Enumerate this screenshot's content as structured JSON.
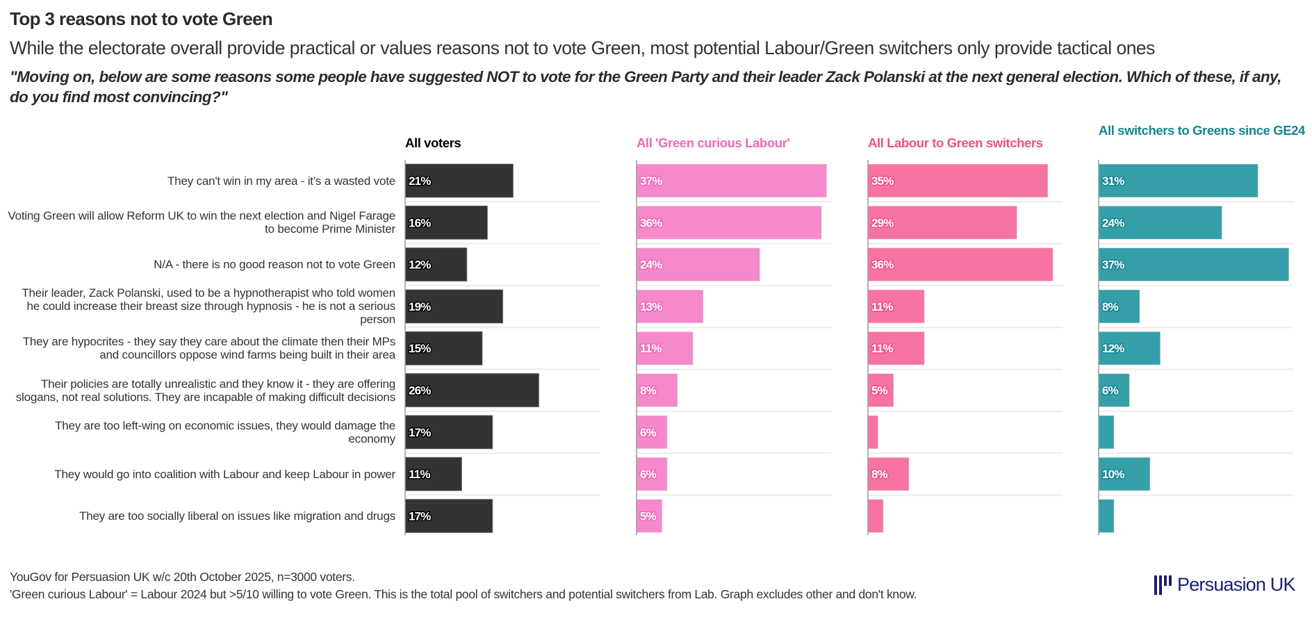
{
  "header": {
    "title": "Top 3 reasons not to vote Green",
    "subtitle": "While the electorate overall provide practical or values reasons not to vote Green, most potential Labour/Green switchers only provide tactical ones",
    "question": "\"Moving on, below are some reasons some people have suggested NOT to vote for the Green Party and their leader Zack Polanski at the next general election. Which of these, if any, do you find most convincing?\""
  },
  "footer": {
    "source": "YouGov for Persuasion UK w/c 20th October 2025, n=3000 voters.",
    "note": "'Green curious Labour' = Labour 2024 but >5/10 willing to vote Green. This is the total pool of switchers and potential switchers from Lab. Graph excludes other and don't know."
  },
  "logo": {
    "text": "Persuasion UK",
    "icon": "persuasion-bars-icon",
    "color": "#1a1f71"
  },
  "chart_data": {
    "type": "bar",
    "orientation": "horizontal",
    "title": "Top 3 reasons not to vote Green",
    "unit": "%",
    "xlim": [
      0,
      40
    ],
    "grid": false,
    "categories": [
      "They can't win in my area - it's a wasted vote",
      "Voting Green will allow Reform UK to win the next election and Nigel Farage to become Prime Minister",
      "N/A - there is no good reason not to vote Green",
      "Their leader, Zack Polanski, used to be a hypnotherapist who told women he could increase their breast size through hypnosis - he is not a serious person",
      "They are hypocrites - they say they care about the climate then their MPs and councillors oppose wind farms being built in their area",
      "Their policies are totally unrealistic and they know it - they are offering slogans, not real solutions. They are incapable of making difficult decisions",
      "They are too left-wing on economic issues, they would damage the economy",
      "They would go into coalition with Labour and keep Labour in power",
      "They are too socially liberal on issues like migration and drugs"
    ],
    "series": [
      {
        "name": "All voters",
        "color": "#333333",
        "stroke": "#000000",
        "values": [
          21,
          16,
          12,
          19,
          15,
          26,
          17,
          11,
          17
        ],
        "labels": [
          "21%",
          "16%",
          "12%",
          "19%",
          "15%",
          "26%",
          "17%",
          "11%",
          "17%"
        ]
      },
      {
        "name": "All 'Green curious Labour'",
        "color": "#f589cb",
        "stroke": "#ee68b6",
        "values": [
          37,
          36,
          24,
          13,
          11,
          8,
          6,
          6,
          5
        ],
        "labels": [
          "37%",
          "36%",
          "24%",
          "13%",
          "11%",
          "8%",
          "6%",
          "6%",
          "5%"
        ]
      },
      {
        "name": "All Labour to Green switchers",
        "color": "#f673a4",
        "stroke": "#ef4f8c",
        "values": [
          35,
          29,
          36,
          11,
          11,
          5,
          2,
          8,
          3
        ],
        "labels": [
          "35%",
          "29%",
          "36%",
          "11%",
          "11%",
          "5%",
          "",
          "8%",
          ""
        ]
      },
      {
        "name": "All switchers to Greens since GE24",
        "color": "#359fa9",
        "stroke": "#13858f",
        "values": [
          31,
          24,
          37,
          8,
          12,
          6,
          3,
          10,
          3
        ],
        "labels": [
          "31%",
          "24%",
          "37%",
          "8%",
          "12%",
          "6%",
          "",
          "10%",
          ""
        ]
      }
    ]
  }
}
